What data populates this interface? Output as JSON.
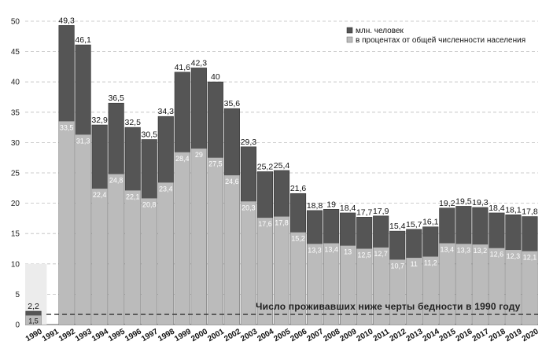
{
  "chart_data": {
    "type": "bar",
    "categories": [
      "1990",
      "1991",
      "1992",
      "1993",
      "1994",
      "1995",
      "1996",
      "1997",
      "1998",
      "1999",
      "2000",
      "2001",
      "2002",
      "2003",
      "2004",
      "2005",
      "2006",
      "2007",
      "2008",
      "2009",
      "2010",
      "2011",
      "2012",
      "2013",
      "2014",
      "2015",
      "2016",
      "2017",
      "2018",
      "2019",
      "2020"
    ],
    "series": [
      {
        "name": "млн. человек",
        "color": "#555555",
        "values": [
          2.2,
          null,
          49.3,
          46.1,
          32.9,
          36.5,
          32.5,
          30.5,
          34.3,
          41.6,
          42.3,
          40,
          35.6,
          29.3,
          25.2,
          25.4,
          21.6,
          18.8,
          19,
          18.4,
          17.7,
          17.9,
          15.4,
          15.7,
          16.1,
          19.2,
          19.5,
          19.3,
          18.4,
          18.1,
          17.8
        ],
        "labels": [
          "2,2",
          "",
          "49,3",
          "46,1",
          "32,9",
          "36,5",
          "32,5",
          "30,5",
          "34,3",
          "41,6",
          "42,3",
          "40",
          "35,6",
          "29,3",
          "25,2",
          "25,4",
          "21,6",
          "18,8",
          "19",
          "18,4",
          "17,7",
          "17,9",
          "15,4",
          "15,7",
          "16,1",
          "19,2",
          "19,5",
          "19,3",
          "18,4",
          "18,1",
          "17,8"
        ]
      },
      {
        "name": "в процентах от общей численности населения",
        "color": "#bbbbbb",
        "values": [
          1.5,
          null,
          33.5,
          31.3,
          22.4,
          24.8,
          22.1,
          20.8,
          23.4,
          28.4,
          29,
          27.5,
          24.6,
          20.3,
          17.6,
          17.8,
          15.2,
          13.3,
          13.4,
          13,
          12.5,
          12.7,
          10.7,
          11,
          11.2,
          13.4,
          13.3,
          13.2,
          12.6,
          12.3,
          12.1
        ],
        "labels": [
          "1,5",
          "",
          "33,5",
          "31,3",
          "22,4",
          "24,8",
          "22,1",
          "20,8",
          "23,4",
          "28,4",
          "29",
          "27,5",
          "24,6",
          "20,3",
          "17,6",
          "17,8",
          "15,2",
          "13,3",
          "13,4",
          "13",
          "12,5",
          "12,7",
          "10,7",
          "11",
          "11,2",
          "13,4",
          "13,3",
          "13,2",
          "12,6",
          "12,3",
          "12,1"
        ]
      }
    ],
    "yticks": [
      0,
      5,
      10,
      15,
      20,
      25,
      30,
      35,
      40,
      45,
      50
    ],
    "ylim": [
      0,
      50
    ],
    "grid": true,
    "legend": "top-right",
    "annotation": {
      "text": "Число проживавших ниже черты бедности в 1990 году",
      "y": 2.2
    }
  }
}
